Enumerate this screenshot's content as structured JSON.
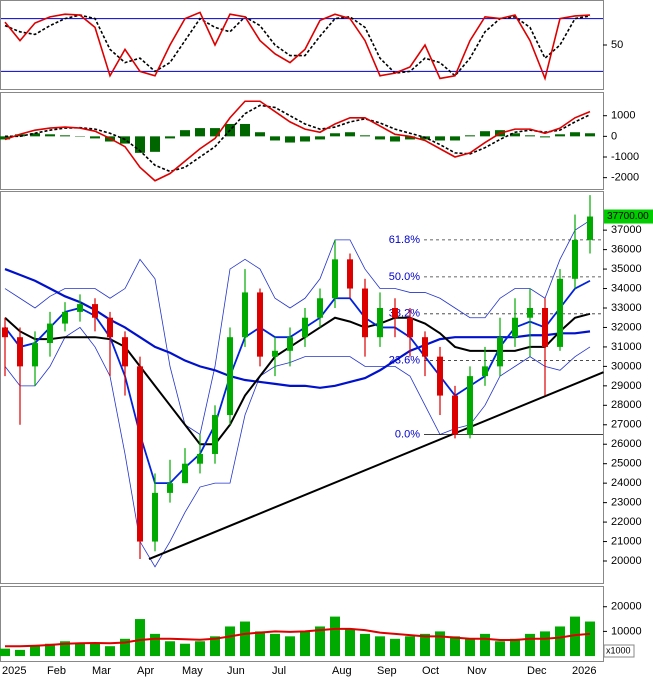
{
  "chart_data": [
    {
      "type": "line",
      "ylim": [
        0,
        100
      ],
      "yticks": [
        50
      ],
      "levels": [
        80,
        20
      ],
      "level_color": "#0000cc",
      "series": [
        {
          "color": "#000000",
          "style": "dashed",
          "values": [
            72,
            65,
            62,
            72,
            80,
            84,
            80,
            45,
            30,
            35,
            20,
            30,
            55,
            80,
            70,
            65,
            82,
            72,
            50,
            38,
            38,
            60,
            80,
            82,
            70,
            35,
            18,
            20,
            35,
            30,
            15,
            35,
            65,
            80,
            82,
            70,
            35,
            50,
            80,
            83
          ]
        },
        {
          "color": "#dd0000",
          "style": "solid",
          "values": [
            76,
            55,
            75,
            82,
            85,
            84,
            70,
            15,
            45,
            20,
            15,
            50,
            80,
            87,
            50,
            85,
            82,
            55,
            40,
            30,
            45,
            78,
            85,
            80,
            55,
            15,
            18,
            25,
            50,
            12,
            15,
            55,
            82,
            80,
            84,
            55,
            12,
            80,
            83,
            84
          ]
        }
      ]
    },
    {
      "type": "macd",
      "ylim": [
        -2550,
        2100
      ],
      "yticks": [
        1000,
        0,
        -1000,
        -2000
      ],
      "bar_color": "#006600",
      "histogram": [
        -150,
        100,
        150,
        100,
        50,
        -20,
        -100,
        -250,
        -350,
        -800,
        -750,
        -100,
        300,
        400,
        400,
        600,
        600,
        200,
        -200,
        -300,
        -250,
        -150,
        150,
        200,
        50,
        -150,
        -250,
        -150,
        -150,
        -200,
        -200,
        50,
        250,
        300,
        150,
        50,
        -50,
        100,
        200,
        150
      ],
      "series": [
        {
          "color": "#000000",
          "style": "dashed",
          "values": [
            0,
            0,
            150,
            300,
            400,
            420,
            350,
            150,
            -150,
            -700,
            -1400,
            -1700,
            -1500,
            -1000,
            -500,
            300,
            1100,
            1500,
            1400,
            1000,
            600,
            350,
            450,
            700,
            850,
            650,
            350,
            150,
            -50,
            -400,
            -800,
            -850,
            -550,
            -150,
            200,
            300,
            200,
            300,
            700,
            1050
          ]
        },
        {
          "color": "#dd0000",
          "style": "solid",
          "values": [
            -150,
            100,
            300,
            400,
            450,
            400,
            250,
            -100,
            -500,
            -1500,
            -2150,
            -1800,
            -1200,
            -600,
            -100,
            900,
            1700,
            1700,
            1200,
            700,
            350,
            200,
            600,
            900,
            900,
            500,
            100,
            0,
            -200,
            -600,
            -1000,
            -800,
            -300,
            150,
            350,
            350,
            150,
            400,
            900,
            1200
          ]
        }
      ]
    },
    {
      "type": "candlestick",
      "ylim": [
        18870,
        38960
      ],
      "yticks": [
        20000,
        21000,
        22000,
        23000,
        24000,
        25000,
        26000,
        27000,
        28000,
        29000,
        30000,
        31000,
        32000,
        33000,
        34000,
        35000,
        36000,
        37000
      ],
      "up_color": "#00aa00",
      "down_color": "#dd0000",
      "open": [
        32000,
        31500,
        30000,
        31200,
        32200,
        32800,
        33200,
        32500,
        31500,
        30000,
        21000,
        23500,
        24000,
        25000,
        25500,
        27500,
        31500,
        33800,
        30500,
        30800,
        31500,
        32500,
        33500,
        35500,
        34000,
        31500,
        33000,
        32500,
        31500,
        30500,
        28500,
        26500,
        29500,
        30000,
        31500,
        32500,
        33000,
        31000,
        34500,
        36500
      ],
      "high": [
        32500,
        32000,
        31800,
        32800,
        33300,
        33700,
        33500,
        32800,
        31800,
        30500,
        24500,
        25200,
        25800,
        26500,
        28000,
        32000,
        35000,
        34000,
        31500,
        32000,
        33000,
        34000,
        36500,
        35800,
        34500,
        33800,
        33500,
        33000,
        31800,
        31000,
        29000,
        30000,
        31000,
        32500,
        33500,
        34000,
        33500,
        35000,
        37800,
        38800
      ],
      "low": [
        29500,
        27000,
        29000,
        30500,
        31800,
        32300,
        31800,
        29500,
        28500,
        20100,
        20500,
        23000,
        24000,
        24500,
        25000,
        27000,
        31000,
        30000,
        29500,
        30000,
        31000,
        32000,
        33000,
        33500,
        30500,
        31000,
        31500,
        30500,
        29500,
        27500,
        26300,
        26300,
        29000,
        29500,
        31000,
        30500,
        28500,
        30800,
        34000,
        35800
      ],
      "close": [
        31500,
        30000,
        31200,
        32200,
        32800,
        33200,
        32500,
        31500,
        30000,
        21000,
        23500,
        24000,
        25000,
        25500,
        27500,
        31500,
        33800,
        30500,
        30800,
        31500,
        32500,
        33500,
        35500,
        34000,
        31500,
        33000,
        32500,
        31500,
        30500,
        28500,
        26500,
        29500,
        30000,
        31500,
        32500,
        33000,
        31000,
        34500,
        36500,
        37700
      ],
      "series": [
        {
          "color": "#2233cc",
          "width": 0.8,
          "values": [
            34000,
            33500,
            33000,
            33600,
            34000,
            34000,
            34000,
            33500,
            34000,
            35500,
            34500,
            30000,
            27000,
            26500,
            30000,
            35000,
            35500,
            35000,
            33500,
            33000,
            33500,
            34500,
            36500,
            36500,
            35000,
            34000,
            34000,
            33800,
            33800,
            33500,
            33000,
            32500,
            32500,
            33500,
            34000,
            34000,
            33500,
            35500,
            37000,
            37500
          ]
        },
        {
          "color": "#2233cc",
          "width": 0.8,
          "values": [
            30000,
            29000,
            29000,
            30000,
            31500,
            32000,
            31000,
            29500,
            25500,
            21000,
            19700,
            21000,
            22500,
            23800,
            24000,
            24000,
            27500,
            29500,
            30000,
            30200,
            30500,
            30500,
            30500,
            30500,
            30000,
            30000,
            30000,
            29500,
            28000,
            26500,
            26800,
            27000,
            28000,
            29500,
            30000,
            30500,
            30000,
            29800,
            30500,
            31000
          ]
        },
        {
          "color": "#0011cc",
          "width": 2.2,
          "values": [
            35000,
            34700,
            34400,
            34000,
            33600,
            33300,
            32900,
            32400,
            32000,
            31500,
            31000,
            30700,
            30300,
            30000,
            29800,
            29500,
            29300,
            29200,
            29100,
            29000,
            29000,
            28900,
            29000,
            29200,
            29400,
            29800,
            30300,
            30800,
            31100,
            31400,
            31500,
            31500,
            31500,
            31500,
            31500,
            31600,
            31600,
            31700,
            31700,
            31800
          ]
        },
        {
          "color": "#000000",
          "width": 2,
          "values": [
            32500,
            31800,
            31400,
            31400,
            31500,
            31500,
            31500,
            31400,
            31000,
            30000,
            29000,
            28000,
            27000,
            26000,
            26000,
            27000,
            28500,
            29500,
            30500,
            31000,
            31500,
            32000,
            32500,
            32300,
            32000,
            32200,
            32500,
            32500,
            32200,
            31700,
            31000,
            30800,
            30800,
            30800,
            30800,
            31000,
            31000,
            31800,
            32500,
            32700
          ]
        },
        {
          "color": "#0022dd",
          "width": 1.8,
          "values": [
            32000,
            31000,
            31200,
            32000,
            32800,
            33000,
            32600,
            31500,
            29500,
            26500,
            24000,
            24000,
            24800,
            25500,
            27000,
            29500,
            31500,
            32000,
            31500,
            31500,
            32000,
            32500,
            33500,
            33500,
            32500,
            32000,
            32000,
            31500,
            30500,
            29500,
            28500,
            29000,
            29500,
            31000,
            32000,
            32300,
            32000,
            33000,
            34000,
            34400
          ]
        }
      ],
      "fib_levels": [
        {
          "label": "61.8%",
          "value": 36500,
          "style": "dashed"
        },
        {
          "label": "50.0%",
          "value": 34600,
          "style": "dashed"
        },
        {
          "label": "38.2%",
          "value": 32700,
          "style": "dashed"
        },
        {
          "label": "23.6%",
          "value": 30300,
          "style": "dashed"
        },
        {
          "label": "0.0%",
          "value": 26500,
          "style": "solid"
        }
      ],
      "fib_color": "#0000cc",
      "trendline": {
        "x": [
          9.6,
          39.9
        ],
        "values": [
          20100,
          29700
        ],
        "color": "#000000"
      },
      "last_price": {
        "value": 37700,
        "label": "37700.00",
        "color": "#00cc00"
      }
    },
    {
      "type": "bar",
      "ylim": [
        -2000,
        28000
      ],
      "yticks": [
        10000,
        20000
      ],
      "unit": "x1000",
      "color": "#00aa00",
      "categories": [
        "2025",
        null,
        null,
        "Feb",
        null,
        null,
        "Mar",
        null,
        null,
        "Apr",
        null,
        null,
        "May",
        null,
        null,
        "Jun",
        null,
        null,
        "Jul",
        null,
        null,
        null,
        "Aug",
        null,
        null,
        "Sep",
        null,
        null,
        "Oct",
        null,
        null,
        "Nov",
        null,
        null,
        null,
        "Dec",
        null,
        null,
        "2026",
        null
      ],
      "values": [
        3000,
        2500,
        4000,
        5000,
        6000,
        5000,
        5500,
        4000,
        7000,
        15000,
        9000,
        6000,
        5000,
        6000,
        8000,
        12000,
        14000,
        10000,
        9000,
        8000,
        10000,
        12000,
        16000,
        11000,
        9000,
        8000,
        7000,
        8000,
        9000,
        10000,
        8000,
        7000,
        9000,
        6000,
        7000,
        9000,
        10000,
        12000,
        16000,
        14000
      ],
      "series": [
        {
          "color": "#dd0000",
          "width": 2,
          "values": [
            4000,
            4000,
            4200,
            4500,
            5000,
            5200,
            5300,
            5200,
            5500,
            6500,
            7000,
            7000,
            6800,
            6600,
            7000,
            8000,
            9000,
            9500,
            10000,
            9800,
            10000,
            10500,
            11000,
            11000,
            10500,
            9500,
            9000,
            8500,
            8000,
            8000,
            7500,
            7000,
            7000,
            6500,
            6500,
            7000,
            7000,
            7500,
            8500,
            9000
          ]
        }
      ]
    }
  ]
}
